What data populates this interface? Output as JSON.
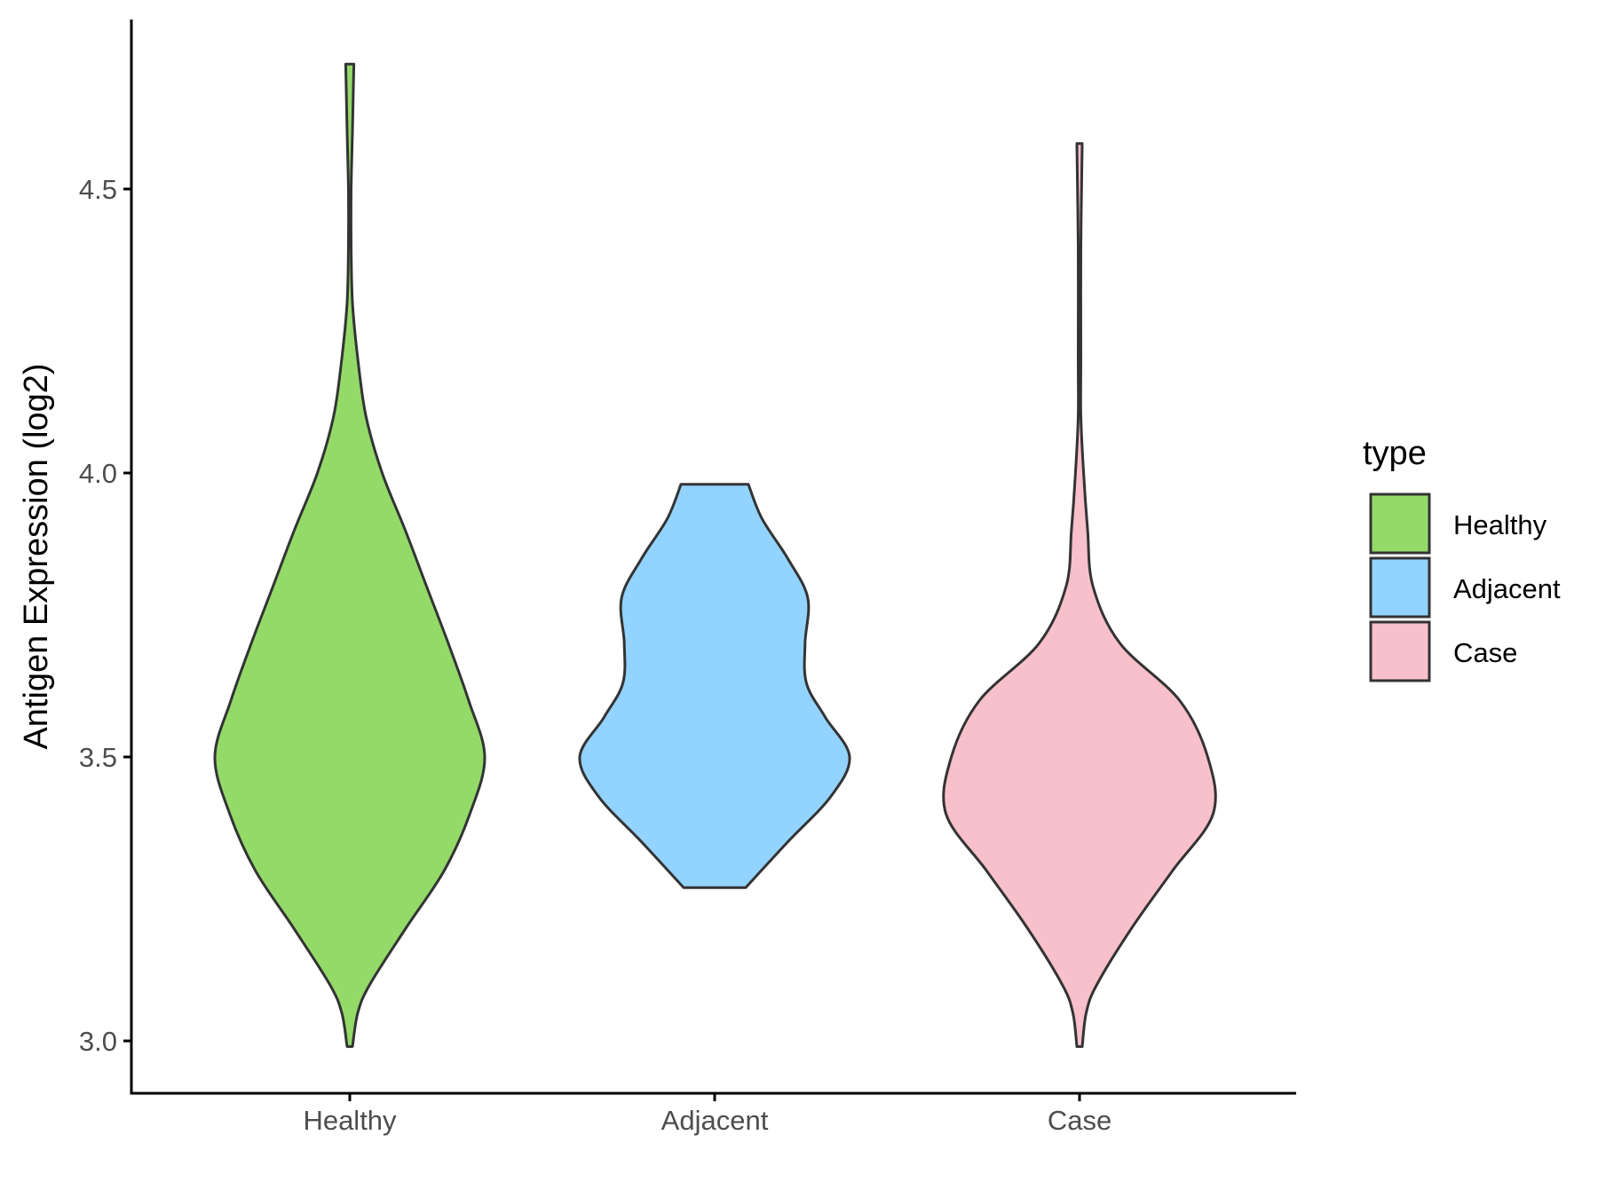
{
  "chart_data": {
    "type": "violin",
    "ylabel": "Antigen Expression (log2)",
    "xlabel": "",
    "ylim": [
      2.91,
      4.81
    ],
    "yticks": [
      3.0,
      3.5,
      4.0,
      4.5
    ],
    "ytick_labels": [
      "3.0",
      "3.5",
      "4.0",
      "4.5"
    ],
    "categories": [
      "Healthy",
      "Adjacent",
      "Case"
    ],
    "legend": {
      "title": "type",
      "placement": "right",
      "entries": [
        "Healthy",
        "Adjacent",
        "Case"
      ]
    },
    "grid": false,
    "series": [
      {
        "name": "Healthy",
        "color": "#93DA69",
        "min": 2.99,
        "max": 4.72,
        "density": [
          [
            2.99,
            0.02
          ],
          [
            3.05,
            0.06
          ],
          [
            3.1,
            0.15
          ],
          [
            3.2,
            0.42
          ],
          [
            3.3,
            0.7
          ],
          [
            3.4,
            0.89
          ],
          [
            3.5,
            1.0
          ],
          [
            3.6,
            0.88
          ],
          [
            3.7,
            0.73
          ],
          [
            3.8,
            0.57
          ],
          [
            3.9,
            0.41
          ],
          [
            4.0,
            0.24
          ],
          [
            4.1,
            0.12
          ],
          [
            4.2,
            0.06
          ],
          [
            4.3,
            0.02
          ],
          [
            4.4,
            0.01
          ],
          [
            4.5,
            0.01
          ],
          [
            4.6,
            0.02
          ],
          [
            4.72,
            0.03
          ]
        ]
      },
      {
        "name": "Adjacent",
        "color": "#92D3FF",
        "min": 3.27,
        "max": 3.98,
        "density": [
          [
            3.27,
            0.23
          ],
          [
            3.35,
            0.54
          ],
          [
            3.43,
            0.86
          ],
          [
            3.5,
            1.0
          ],
          [
            3.57,
            0.82
          ],
          [
            3.63,
            0.68
          ],
          [
            3.7,
            0.67
          ],
          [
            3.78,
            0.69
          ],
          [
            3.85,
            0.54
          ],
          [
            3.92,
            0.35
          ],
          [
            3.98,
            0.25
          ]
        ]
      },
      {
        "name": "Case",
        "color": "#F7C0CB",
        "min": 2.99,
        "max": 4.58,
        "density": [
          [
            2.99,
            0.02
          ],
          [
            3.05,
            0.05
          ],
          [
            3.1,
            0.13
          ],
          [
            3.2,
            0.39
          ],
          [
            3.3,
            0.69
          ],
          [
            3.4,
            0.99
          ],
          [
            3.5,
            0.95
          ],
          [
            3.6,
            0.74
          ],
          [
            3.7,
            0.3
          ],
          [
            3.8,
            0.1
          ],
          [
            3.9,
            0.06
          ],
          [
            4.0,
            0.03
          ],
          [
            4.1,
            0.01
          ],
          [
            4.2,
            0.01
          ],
          [
            4.4,
            0.01
          ],
          [
            4.58,
            0.02
          ]
        ]
      }
    ]
  }
}
